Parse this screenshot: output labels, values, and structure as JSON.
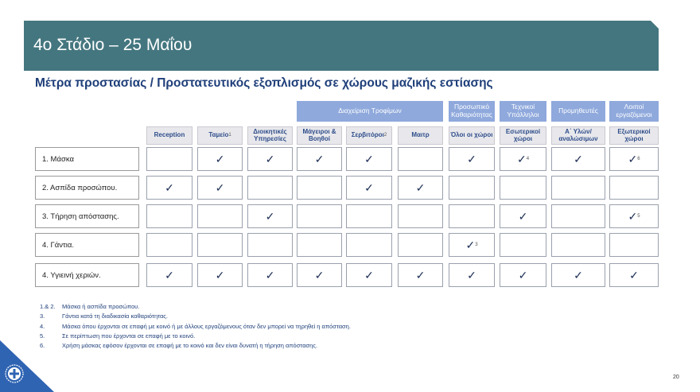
{
  "header": {
    "title": "4ο Στάδιο – 25 Μαΐου"
  },
  "subtitle": "Μέτρα προστασίας / Προστατευτικός εξοπλισμός σε χώρους μαζικής εστίασης",
  "groups": [
    {
      "label": "Διαχείριση Τροφίμων",
      "from": 3,
      "to": 5
    },
    {
      "label": "Προσωπικό Καθαριότητας",
      "from": 6,
      "to": 6
    },
    {
      "label": "Τεχνικοί Υπάλληλοι",
      "from": 7,
      "to": 7
    },
    {
      "label": "Προμηθευτές",
      "from": 8,
      "to": 8
    },
    {
      "label": "Λοιποί εργαζόμενοι",
      "from": 9,
      "to": 9
    }
  ],
  "columns": [
    {
      "label": "Reception",
      "sup": ""
    },
    {
      "label": "Ταμείο",
      "sup": "1"
    },
    {
      "label": "Διοικητικές Υπηρεσίες",
      "sup": ""
    },
    {
      "label": "Μάγειροι & Βοηθοί",
      "sup": ""
    },
    {
      "label": "Σερβιτόροι",
      "sup": "2"
    },
    {
      "label": "Μαιτρ",
      "sup": ""
    },
    {
      "label": "Όλοι οι χώροι",
      "sup": ""
    },
    {
      "label": "Εσωτερικοί χώροι",
      "sup": ""
    },
    {
      "label": "Α΄ Υλών/ αναλώσιμων",
      "sup": ""
    },
    {
      "label": "Εξωτερικοί χώροι",
      "sup": ""
    }
  ],
  "check_symbol": "✓",
  "rows": [
    {
      "label": "1. Μάσκα",
      "checks": [
        false,
        true,
        true,
        true,
        true,
        false,
        true,
        true,
        true,
        true
      ],
      "sups": [
        "",
        "",
        "",
        "",
        "",
        "",
        "",
        "4",
        "",
        "6"
      ]
    },
    {
      "label": "2. Ασπίδα προσώπου.",
      "checks": [
        true,
        true,
        false,
        false,
        true,
        true,
        false,
        false,
        false,
        false
      ],
      "sups": [
        "",
        "",
        "",
        "",
        "",
        "",
        "",
        "",
        "",
        ""
      ]
    },
    {
      "label": "3. Τήρηση απόστασης.",
      "checks": [
        false,
        false,
        true,
        false,
        false,
        false,
        false,
        true,
        false,
        true
      ],
      "sups": [
        "",
        "",
        "",
        "",
        "",
        "",
        "",
        "",
        "",
        "5"
      ]
    },
    {
      "label": "4. Γάντια.",
      "checks": [
        false,
        false,
        false,
        false,
        false,
        false,
        true,
        false,
        false,
        false
      ],
      "sups": [
        "",
        "",
        "",
        "",
        "",
        "",
        "3",
        "",
        "",
        ""
      ]
    },
    {
      "label": "4. Υγιεινή χεριών.",
      "checks": [
        true,
        true,
        true,
        true,
        true,
        true,
        true,
        true,
        true,
        true
      ],
      "sups": [
        "",
        "",
        "",
        "",
        "",
        "",
        "",
        "",
        "",
        ""
      ]
    }
  ],
  "notes": [
    {
      "num": "1.& 2.",
      "text": "Μάσκα ή ασπίδα προσώπου."
    },
    {
      "num": "3.",
      "text": "Γάντια κατά τη διαδικασία  καθαριότητας."
    },
    {
      "num": "4.",
      "text": "Μάσκα όπου  έρχονται σε επαφή με κοινό ή με άλλους εργαζόμενους  όταν δεν μπορεί να τηρηθεί η απόσταση."
    },
    {
      "num": "5.",
      "text": "Σε περίπτωση που έρχονται σε επαφή με το κοινό."
    },
    {
      "num": "6.",
      "text": "Χρήση μάσκας εφόσον έρχονται σε επαφή με το κοινό και δεν είναι δυνατή η τήρηση απόστασης."
    }
  ],
  "page_number": "20",
  "colors": {
    "title_bar": "#44767f",
    "group_header": "#8fa9dc",
    "subtitle": "#1f3f7a",
    "logo": "#2f64b3"
  }
}
